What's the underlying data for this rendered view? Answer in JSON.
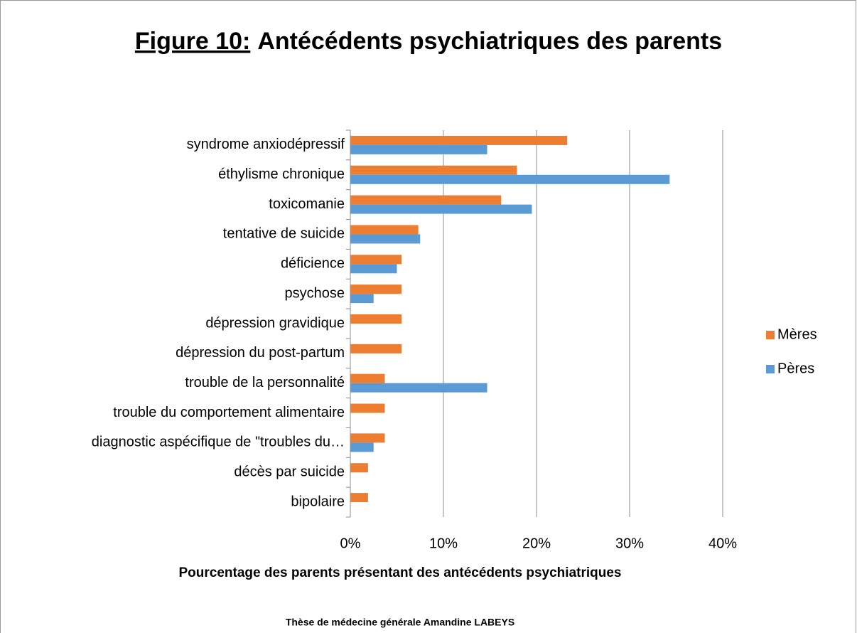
{
  "chart_data": {
    "type": "barh",
    "title_label": "Figure 10:",
    "title": "Antécédents psychiatriques des parents",
    "x_label": "Pourcentage des parents présentant des antécédents psychiatriques",
    "footer": "Thèse de médecine générale Amandine LABEYS",
    "categories": [
      "syndrome anxiodépressif",
      "éthylisme chronique",
      "toxicomanie",
      "tentative de suicide",
      "déficience",
      "psychose",
      "dépression gravidique",
      "dépression du post-partum",
      "trouble de la personnalité",
      "trouble du comportement alimentaire",
      "diagnostic aspécifique de \"troubles  du…",
      "décès par suicide",
      "bipolaire"
    ],
    "series": [
      {
        "name": "Mères",
        "color": "#ed7d31",
        "values": [
          23.3,
          17.9,
          16.2,
          7.3,
          5.5,
          5.5,
          5.5,
          5.5,
          3.7,
          3.7,
          3.7,
          1.9,
          1.9
        ]
      },
      {
        "name": "Pères",
        "color": "#5b9bd5",
        "values": [
          14.7,
          34.3,
          19.5,
          7.5,
          5.0,
          2.5,
          null,
          null,
          14.7,
          null,
          2.5,
          null,
          null
        ]
      }
    ],
    "xlim": [
      0,
      40
    ],
    "xticks": [
      {
        "value": 0,
        "label": "0%"
      },
      {
        "value": 10,
        "label": "10%"
      },
      {
        "value": 20,
        "label": "20%"
      },
      {
        "value": 30,
        "label": "30%"
      },
      {
        "value": 40,
        "label": "40%"
      }
    ],
    "grid": true,
    "legend": "right"
  }
}
